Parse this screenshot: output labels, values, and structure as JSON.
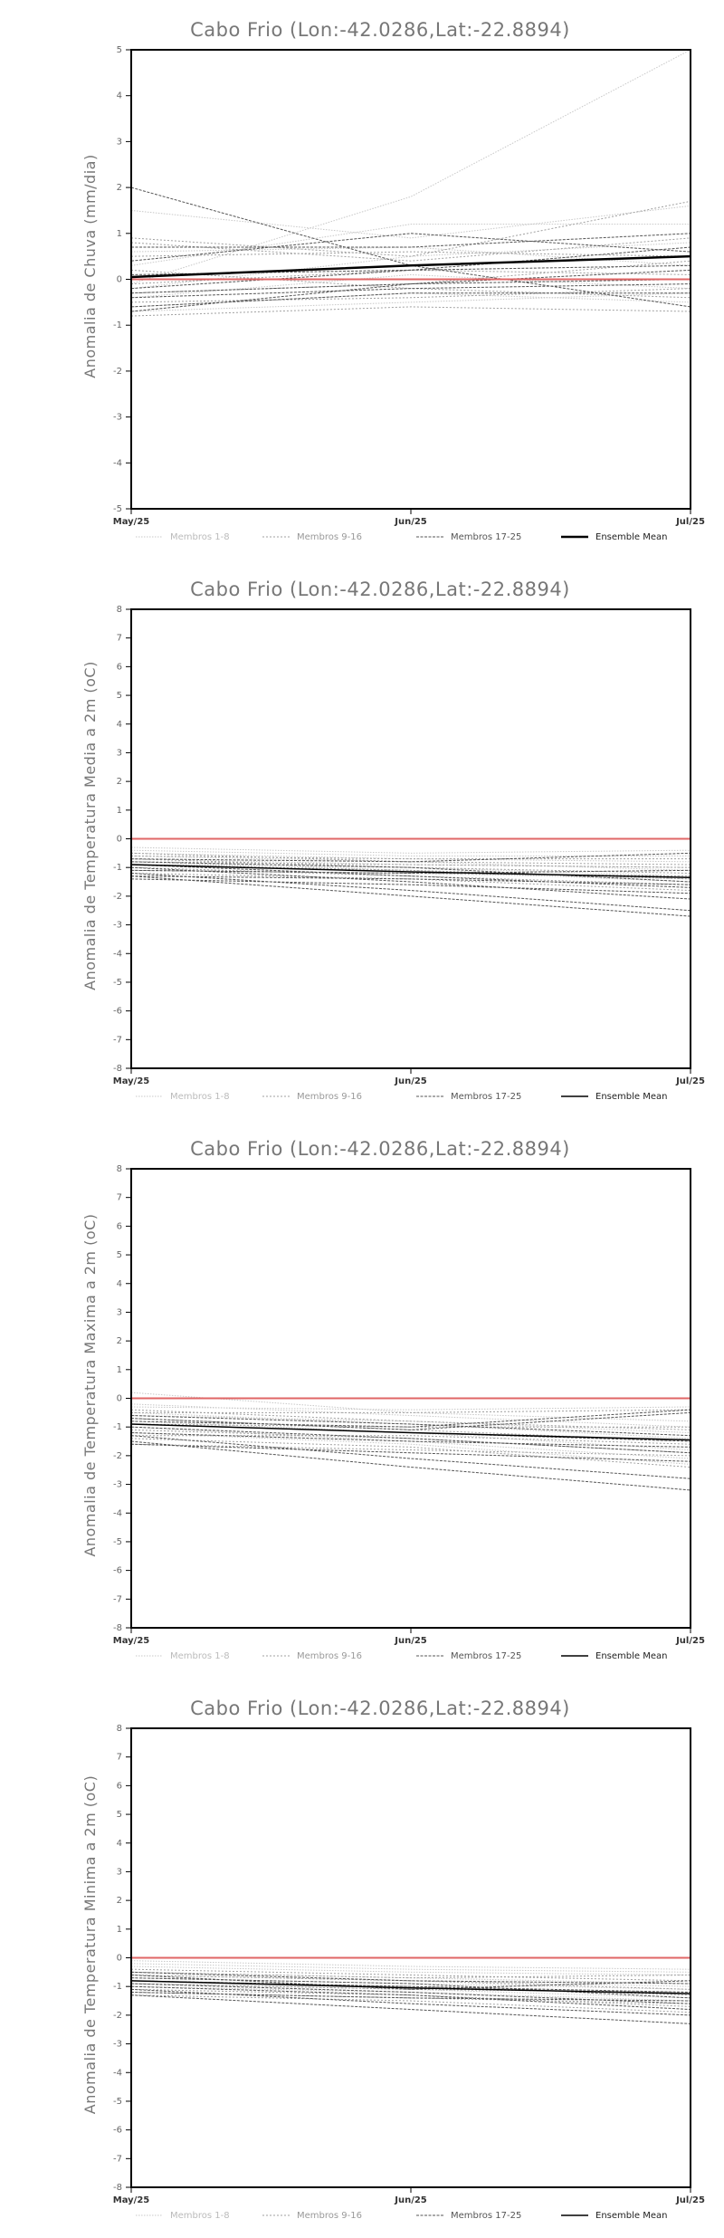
{
  "chart_data": [
    {
      "type": "line",
      "title": "Cabo Frio (Lon:-42.0286,Lat:-22.8894)",
      "ylabel": "Anomalia de Chuva (mm/dia)",
      "x": [
        "May/25",
        "Jun/25",
        "Jul/25"
      ],
      "ylim": [
        -5,
        5
      ],
      "yticks": [
        -5,
        -4,
        -3,
        -2,
        -1,
        0,
        1,
        2,
        3,
        4,
        5
      ],
      "legend": {
        "placement": "bottom",
        "items": [
          "Membros 1-8",
          "Membros 9-16",
          "Membros 17-25",
          "Ensemble Mean"
        ]
      },
      "colors": {
        "m1": "#c8c8c8",
        "m2": "#a0a0a0",
        "m3": "#555555",
        "mean": "#000000",
        "zero": "#e06666"
      },
      "series": [
        {
          "group": 1,
          "values": [
            -0.1,
            1.8,
            5.0
          ]
        },
        {
          "group": 1,
          "values": [
            1.5,
            0.9,
            1.6
          ]
        },
        {
          "group": 1,
          "values": [
            0.3,
            1.2,
            1.2
          ]
        },
        {
          "group": 1,
          "values": [
            -0.2,
            0.5,
            0.8
          ]
        },
        {
          "group": 1,
          "values": [
            0.6,
            0.7,
            0.3
          ]
        },
        {
          "group": 1,
          "values": [
            -0.6,
            -0.3,
            -0.5
          ]
        },
        {
          "group": 1,
          "values": [
            -0.7,
            -0.5,
            -0.3
          ]
        },
        {
          "group": 1,
          "values": [
            -0.4,
            0.1,
            -0.2
          ]
        },
        {
          "group": 2,
          "values": [
            0.9,
            0.5,
            1.7
          ]
        },
        {
          "group": 2,
          "values": [
            0.8,
            0.4,
            0.9
          ]
        },
        {
          "group": 2,
          "values": [
            0.5,
            0.6,
            0.5
          ]
        },
        {
          "group": 2,
          "values": [
            -0.3,
            -0.1,
            0.4
          ]
        },
        {
          "group": 2,
          "values": [
            -0.8,
            -0.6,
            -0.7
          ]
        },
        {
          "group": 2,
          "values": [
            -0.1,
            0.2,
            0.1
          ]
        },
        {
          "group": 2,
          "values": [
            0.2,
            -0.2,
            -0.4
          ]
        },
        {
          "group": 2,
          "values": [
            -0.5,
            -0.4,
            -0.2
          ]
        },
        {
          "group": 3,
          "values": [
            2.0,
            0.3,
            -0.6
          ]
        },
        {
          "group": 3,
          "values": [
            0.7,
            0.7,
            1.0
          ]
        },
        {
          "group": 3,
          "values": [
            0.4,
            1.0,
            0.6
          ]
        },
        {
          "group": 3,
          "values": [
            0.1,
            0.2,
            0.7
          ]
        },
        {
          "group": 3,
          "values": [
            -0.2,
            0.2,
            0.3
          ]
        },
        {
          "group": 3,
          "values": [
            -0.3,
            -0.1,
            0.0
          ]
        },
        {
          "group": 3,
          "values": [
            -0.4,
            -0.2,
            -0.1
          ]
        },
        {
          "group": 3,
          "values": [
            -0.6,
            -0.3,
            -0.3
          ]
        },
        {
          "group": 3,
          "values": [
            -0.7,
            -0.1,
            0.2
          ]
        }
      ],
      "mean": [
        0.05,
        0.3,
        0.5
      ]
    },
    {
      "type": "line",
      "title": "Cabo Frio (Lon:-42.0286,Lat:-22.8894)",
      "ylabel": "Anomalia de Temperatura Media a 2m (oC)",
      "x": [
        "May/25",
        "Jun/25",
        "Jul/25"
      ],
      "ylim": [
        -8,
        8
      ],
      "yticks": [
        -8,
        -7,
        -6,
        -5,
        -4,
        -3,
        -2,
        -1,
        0,
        1,
        2,
        3,
        4,
        5,
        6,
        7,
        8
      ],
      "legend": {
        "placement": "bottom",
        "items": [
          "Membros 1-8",
          "Membros 9-16",
          "Membros 17-25",
          "Ensemble Mean"
        ]
      },
      "colors": {
        "m1": "#c8c8c8",
        "m2": "#a0a0a0",
        "m3": "#555555",
        "mean": "#000000",
        "zero": "#e06666"
      },
      "series": [
        {
          "group": 1,
          "values": [
            -0.3,
            -0.5,
            -0.4
          ]
        },
        {
          "group": 1,
          "values": [
            -0.5,
            -0.7,
            -0.8
          ]
        },
        {
          "group": 1,
          "values": [
            -0.7,
            -0.9,
            -1.0
          ]
        },
        {
          "group": 1,
          "values": [
            -0.9,
            -1.0,
            -1.3
          ]
        },
        {
          "group": 1,
          "values": [
            -1.1,
            -1.2,
            -1.4
          ]
        },
        {
          "group": 1,
          "values": [
            -0.4,
            -0.6,
            -0.6
          ]
        },
        {
          "group": 1,
          "values": [
            -0.6,
            -0.8,
            -1.1
          ]
        },
        {
          "group": 1,
          "values": [
            -0.8,
            -1.1,
            -1.5
          ]
        },
        {
          "group": 2,
          "values": [
            -0.5,
            -0.8,
            -0.9
          ]
        },
        {
          "group": 2,
          "values": [
            -0.7,
            -1.0,
            -1.2
          ]
        },
        {
          "group": 2,
          "values": [
            -1.0,
            -1.3,
            -1.6
          ]
        },
        {
          "group": 2,
          "values": [
            -1.2,
            -1.4,
            -1.8
          ]
        },
        {
          "group": 2,
          "values": [
            -0.8,
            -0.9,
            -1.0
          ]
        },
        {
          "group": 2,
          "values": [
            -0.6,
            -0.7,
            -0.7
          ]
        },
        {
          "group": 2,
          "values": [
            -1.1,
            -1.2,
            -1.3
          ]
        },
        {
          "group": 2,
          "values": [
            -0.9,
            -1.1,
            -1.4
          ]
        },
        {
          "group": 3,
          "values": [
            -1.3,
            -2.0,
            -2.7
          ]
        },
        {
          "group": 3,
          "values": [
            -1.2,
            -1.8,
            -2.5
          ]
        },
        {
          "group": 3,
          "values": [
            -1.0,
            -1.5,
            -2.1
          ]
        },
        {
          "group": 3,
          "values": [
            -1.4,
            -1.6,
            -1.9
          ]
        },
        {
          "group": 3,
          "values": [
            -0.9,
            -1.3,
            -1.7
          ]
        },
        {
          "group": 3,
          "values": [
            -0.8,
            -1.0,
            -1.5
          ]
        },
        {
          "group": 3,
          "values": [
            -0.7,
            -0.8,
            -0.5
          ]
        },
        {
          "group": 3,
          "values": [
            -1.1,
            -1.2,
            -1.1
          ]
        },
        {
          "group": 3,
          "values": [
            -1.3,
            -1.4,
            -1.6
          ]
        }
      ],
      "mean": [
        -0.9,
        -1.15,
        -1.35
      ]
    },
    {
      "type": "line",
      "title": "Cabo Frio (Lon:-42.0286,Lat:-22.8894)",
      "ylabel": "Anomalia de Temperatura Maxima a 2m (oC)",
      "x": [
        "May/25",
        "Jun/25",
        "Jul/25"
      ],
      "ylim": [
        -8,
        8
      ],
      "yticks": [
        -8,
        -7,
        -6,
        -5,
        -4,
        -3,
        -2,
        -1,
        0,
        1,
        2,
        3,
        4,
        5,
        6,
        7,
        8
      ],
      "legend": {
        "placement": "bottom",
        "items": [
          "Membros 1-8",
          "Membros 9-16",
          "Membros 17-25",
          "Ensemble Mean"
        ]
      },
      "colors": {
        "m1": "#c8c8c8",
        "m2": "#a0a0a0",
        "m3": "#555555",
        "mean": "#000000",
        "zero": "#e06666"
      },
      "series": [
        {
          "group": 1,
          "values": [
            0.2,
            -0.5,
            -0.8
          ]
        },
        {
          "group": 1,
          "values": [
            -0.2,
            -0.6,
            -1.0
          ]
        },
        {
          "group": 1,
          "values": [
            -0.5,
            -0.9,
            -1.4
          ]
        },
        {
          "group": 1,
          "values": [
            -0.8,
            -1.2,
            -1.8
          ]
        },
        {
          "group": 1,
          "values": [
            -1.0,
            -1.5,
            -2.1
          ]
        },
        {
          "group": 1,
          "values": [
            -0.3,
            -0.4,
            -0.3
          ]
        },
        {
          "group": 1,
          "values": [
            -0.6,
            -0.8,
            -1.2
          ]
        },
        {
          "group": 1,
          "values": [
            -1.2,
            -1.6,
            -2.3
          ]
        },
        {
          "group": 2,
          "values": [
            -0.4,
            -0.8,
            -1.1
          ]
        },
        {
          "group": 2,
          "values": [
            -0.7,
            -1.1,
            -1.5
          ]
        },
        {
          "group": 2,
          "values": [
            -1.1,
            -1.4,
            -1.9
          ]
        },
        {
          "group": 2,
          "values": [
            -1.4,
            -1.7,
            -2.4
          ]
        },
        {
          "group": 2,
          "values": [
            -0.9,
            -1.0,
            -1.0
          ]
        },
        {
          "group": 2,
          "values": [
            -0.5,
            -0.5,
            -0.4
          ]
        },
        {
          "group": 2,
          "values": [
            -1.3,
            -1.3,
            -1.6
          ]
        },
        {
          "group": 2,
          "values": [
            -1.6,
            -1.8,
            -2.0
          ]
        },
        {
          "group": 3,
          "values": [
            -1.5,
            -2.4,
            -3.2
          ]
        },
        {
          "group": 3,
          "values": [
            -1.3,
            -2.1,
            -2.8
          ]
        },
        {
          "group": 3,
          "values": [
            -1.6,
            -1.9,
            -2.2
          ]
        },
        {
          "group": 3,
          "values": [
            -1.0,
            -1.4,
            -1.9
          ]
        },
        {
          "group": 3,
          "values": [
            -0.8,
            -1.0,
            -0.4
          ]
        },
        {
          "group": 3,
          "values": [
            -0.6,
            -0.9,
            -1.3
          ]
        },
        {
          "group": 3,
          "values": [
            -1.2,
            -1.5,
            -1.7
          ]
        },
        {
          "group": 3,
          "values": [
            -0.9,
            -1.2,
            -1.5
          ]
        },
        {
          "group": 3,
          "values": [
            -0.7,
            -1.1,
            -0.5
          ]
        }
      ],
      "mean": [
        -0.9,
        -1.2,
        -1.45
      ]
    },
    {
      "type": "line",
      "title": "Cabo Frio (Lon:-42.0286,Lat:-22.8894)",
      "ylabel": "Anomalia de Temperatura Minima a 2m (oC)",
      "x": [
        "May/25",
        "Jun/25",
        "Jul/25"
      ],
      "ylim": [
        -8,
        8
      ],
      "yticks": [
        -8,
        -7,
        -6,
        -5,
        -4,
        -3,
        -2,
        -1,
        0,
        1,
        2,
        3,
        4,
        5,
        6,
        7,
        8
      ],
      "legend": {
        "placement": "bottom",
        "items": [
          "Membros 1-8",
          "Membros 9-16",
          "Membros 17-25",
          "Ensemble Mean"
        ]
      },
      "colors": {
        "m1": "#c8c8c8",
        "m2": "#a0a0a0",
        "m3": "#555555",
        "mean": "#000000",
        "zero": "#e06666"
      },
      "series": [
        {
          "group": 1,
          "values": [
            -0.1,
            -0.3,
            -0.4
          ]
        },
        {
          "group": 1,
          "values": [
            -0.3,
            -0.5,
            -0.6
          ]
        },
        {
          "group": 1,
          "values": [
            -0.5,
            -0.7,
            -0.9
          ]
        },
        {
          "group": 1,
          "values": [
            -0.7,
            -0.9,
            -1.1
          ]
        },
        {
          "group": 1,
          "values": [
            -0.9,
            -1.1,
            -1.4
          ]
        },
        {
          "group": 1,
          "values": [
            -0.2,
            -0.4,
            -0.5
          ]
        },
        {
          "group": 1,
          "values": [
            -0.6,
            -0.8,
            -1.0
          ]
        },
        {
          "group": 1,
          "values": [
            -1.0,
            -1.2,
            -1.5
          ]
        },
        {
          "group": 2,
          "values": [
            -0.4,
            -0.6,
            -0.8
          ]
        },
        {
          "group": 2,
          "values": [
            -0.6,
            -0.8,
            -1.1
          ]
        },
        {
          "group": 2,
          "values": [
            -0.8,
            -1.0,
            -1.3
          ]
        },
        {
          "group": 2,
          "values": [
            -1.1,
            -1.3,
            -1.7
          ]
        },
        {
          "group": 2,
          "values": [
            -1.3,
            -1.5,
            -1.9
          ]
        },
        {
          "group": 2,
          "values": [
            -0.5,
            -0.7,
            -0.6
          ]
        },
        {
          "group": 2,
          "values": [
            -0.9,
            -1.1,
            -1.2
          ]
        },
        {
          "group": 2,
          "values": [
            -1.2,
            -1.4,
            -1.6
          ]
        },
        {
          "group": 3,
          "values": [
            -1.3,
            -1.8,
            -2.3
          ]
        },
        {
          "group": 3,
          "values": [
            -1.1,
            -1.6,
            -2.0
          ]
        },
        {
          "group": 3,
          "values": [
            -1.0,
            -1.3,
            -1.8
          ]
        },
        {
          "group": 3,
          "values": [
            -0.8,
            -1.0,
            -1.2
          ]
        },
        {
          "group": 3,
          "values": [
            -0.5,
            -0.8,
            -0.9
          ]
        },
        {
          "group": 3,
          "values": [
            -0.7,
            -0.9,
            -1.4
          ]
        },
        {
          "group": 3,
          "values": [
            -1.2,
            -1.4,
            -1.5
          ]
        },
        {
          "group": 3,
          "values": [
            -0.9,
            -1.2,
            -1.6
          ]
        },
        {
          "group": 3,
          "values": [
            -0.6,
            -1.1,
            -0.8
          ]
        }
      ],
      "mean": [
        -0.8,
        -1.05,
        -1.25
      ]
    }
  ]
}
